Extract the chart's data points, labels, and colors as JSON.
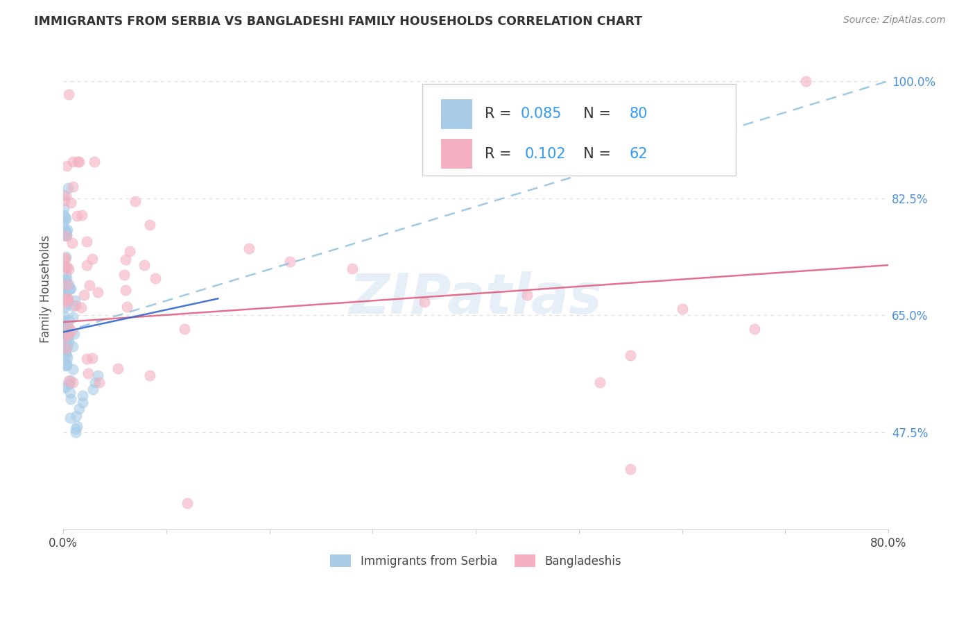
{
  "title": "IMMIGRANTS FROM SERBIA VS BANGLADESHI FAMILY HOUSEHOLDS CORRELATION CHART",
  "source": "Source: ZipAtlas.com",
  "ylabel": "Family Households",
  "ytick_labels": [
    "100.0%",
    "82.5%",
    "65.0%",
    "47.5%"
  ],
  "ytick_values": [
    1.0,
    0.825,
    0.65,
    0.475
  ],
  "xlim": [
    0.0,
    0.8
  ],
  "ylim": [
    0.33,
    1.05
  ],
  "legend_label1": "Immigrants from Serbia",
  "legend_label2": "Bangladeshis",
  "r1": "0.085",
  "n1": "80",
  "r2": "0.102",
  "n2": "62",
  "color_blue": "#a8cce8",
  "color_pink": "#f4b0c0",
  "color_trend_blue_dashed": "#90c0e0",
  "color_trend_blue_solid": "#3366cc",
  "color_trend_pink": "#e06080",
  "watermark": "ZIPatlas",
  "serbia_trend_x0": 0.0,
  "serbia_trend_y0": 0.625,
  "serbia_trend_x1": 0.8,
  "serbia_trend_y1": 1.0,
  "bangla_trend_x0": 0.0,
  "bangla_trend_y0": 0.64,
  "bangla_trend_x1": 0.8,
  "bangla_trend_y1": 0.725
}
